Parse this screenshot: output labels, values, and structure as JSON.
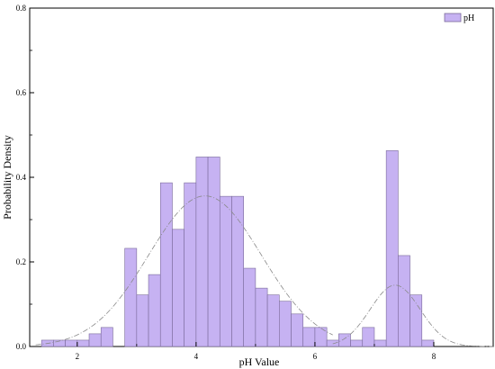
{
  "chart_data": {
    "type": "bar",
    "xlabel": "pH Value",
    "ylabel": "Probability Density",
    "xlim": [
      1.2,
      9.0
    ],
    "ylim": [
      0,
      0.8
    ],
    "x_ticks": [
      2,
      4,
      6,
      8
    ],
    "y_ticks": [
      0.0,
      0.2,
      0.4,
      0.6,
      0.8
    ],
    "y_tick_labels": [
      "0.0",
      "0.2",
      "0.4",
      "0.6",
      "0.8"
    ],
    "legend": {
      "position": "top-right",
      "entries": [
        "pH"
      ]
    },
    "colors": {
      "bar_fill": "#c6b2f2",
      "bar_stroke": "#7a6a9a",
      "curve": "#8a8a8a",
      "axis": "#000000"
    },
    "bin_width": 0.2,
    "series": [
      {
        "name": "pH",
        "bins": [
          {
            "x": 1.5,
            "y": 0.015
          },
          {
            "x": 1.7,
            "y": 0.015
          },
          {
            "x": 1.9,
            "y": 0.015
          },
          {
            "x": 2.1,
            "y": 0.015
          },
          {
            "x": 2.3,
            "y": 0.03
          },
          {
            "x": 2.5,
            "y": 0.045
          },
          {
            "x": 2.9,
            "y": 0.232
          },
          {
            "x": 3.1,
            "y": 0.122
          },
          {
            "x": 3.3,
            "y": 0.17
          },
          {
            "x": 3.5,
            "y": 0.387
          },
          {
            "x": 3.7,
            "y": 0.277
          },
          {
            "x": 3.9,
            "y": 0.387
          },
          {
            "x": 4.1,
            "y": 0.448
          },
          {
            "x": 4.3,
            "y": 0.448
          },
          {
            "x": 4.5,
            "y": 0.355
          },
          {
            "x": 4.7,
            "y": 0.355
          },
          {
            "x": 4.9,
            "y": 0.185
          },
          {
            "x": 5.1,
            "y": 0.138
          },
          {
            "x": 5.3,
            "y": 0.122
          },
          {
            "x": 5.5,
            "y": 0.107
          },
          {
            "x": 5.7,
            "y": 0.077
          },
          {
            "x": 5.9,
            "y": 0.045
          },
          {
            "x": 6.1,
            "y": 0.045
          },
          {
            "x": 6.3,
            "y": 0.015
          },
          {
            "x": 6.5,
            "y": 0.03
          },
          {
            "x": 6.7,
            "y": 0.015
          },
          {
            "x": 6.9,
            "y": 0.045
          },
          {
            "x": 7.1,
            "y": 0.015
          },
          {
            "x": 7.3,
            "y": 0.463
          },
          {
            "x": 7.5,
            "y": 0.215
          },
          {
            "x": 7.7,
            "y": 0.122
          },
          {
            "x": 7.9,
            "y": 0.015
          }
        ]
      }
    ],
    "fit_curves": [
      {
        "type": "normal",
        "scale": 0.356,
        "mean": 4.15,
        "sd": 0.95,
        "xrange": [
          1.3,
          6.3
        ]
      },
      {
        "type": "normal",
        "scale": 0.145,
        "mean": 7.35,
        "sd": 0.42,
        "xrange": [
          6.3,
          9.0
        ]
      }
    ]
  }
}
